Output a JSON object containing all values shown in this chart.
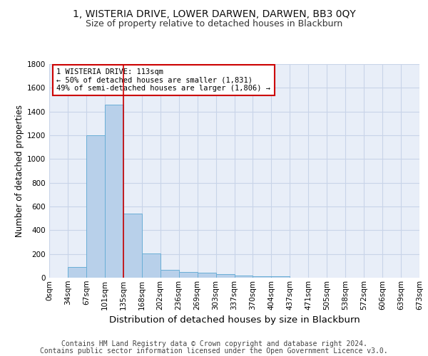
{
  "title1": "1, WISTERIA DRIVE, LOWER DARWEN, DARWEN, BB3 0QY",
  "title2": "Size of property relative to detached houses in Blackburn",
  "xlabel": "Distribution of detached houses by size in Blackburn",
  "ylabel": "Number of detached properties",
  "bin_labels": [
    "0sqm",
    "34sqm",
    "67sqm",
    "101sqm",
    "135sqm",
    "168sqm",
    "202sqm",
    "236sqm",
    "269sqm",
    "303sqm",
    "337sqm",
    "370sqm",
    "404sqm",
    "437sqm",
    "471sqm",
    "505sqm",
    "538sqm",
    "572sqm",
    "606sqm",
    "639sqm",
    "673sqm"
  ],
  "bar_heights": [
    0,
    90,
    1200,
    1460,
    540,
    205,
    65,
    50,
    45,
    30,
    20,
    15,
    15,
    0,
    0,
    0,
    0,
    0,
    0,
    0
  ],
  "bar_color": "#b8d0ea",
  "bar_edge_color": "#6aaed6",
  "grid_color": "#c8d4e8",
  "background_color": "#e8eef8",
  "red_line_x": 4.0,
  "red_line_color": "#cc0000",
  "annotation_text": "1 WISTERIA DRIVE: 113sqm\n← 50% of detached houses are smaller (1,831)\n49% of semi-detached houses are larger (1,806) →",
  "annotation_box_color": "#ffffff",
  "annotation_box_edge": "#cc0000",
  "ylim": [
    0,
    1800
  ],
  "yticks": [
    0,
    200,
    400,
    600,
    800,
    1000,
    1200,
    1400,
    1600,
    1800
  ],
  "footer_line1": "Contains HM Land Registry data © Crown copyright and database right 2024.",
  "footer_line2": "Contains public sector information licensed under the Open Government Licence v3.0.",
  "title1_fontsize": 10,
  "title2_fontsize": 9,
  "xlabel_fontsize": 9.5,
  "ylabel_fontsize": 8.5,
  "footer_fontsize": 7,
  "tick_fontsize": 7.5,
  "annot_fontsize": 7.5
}
